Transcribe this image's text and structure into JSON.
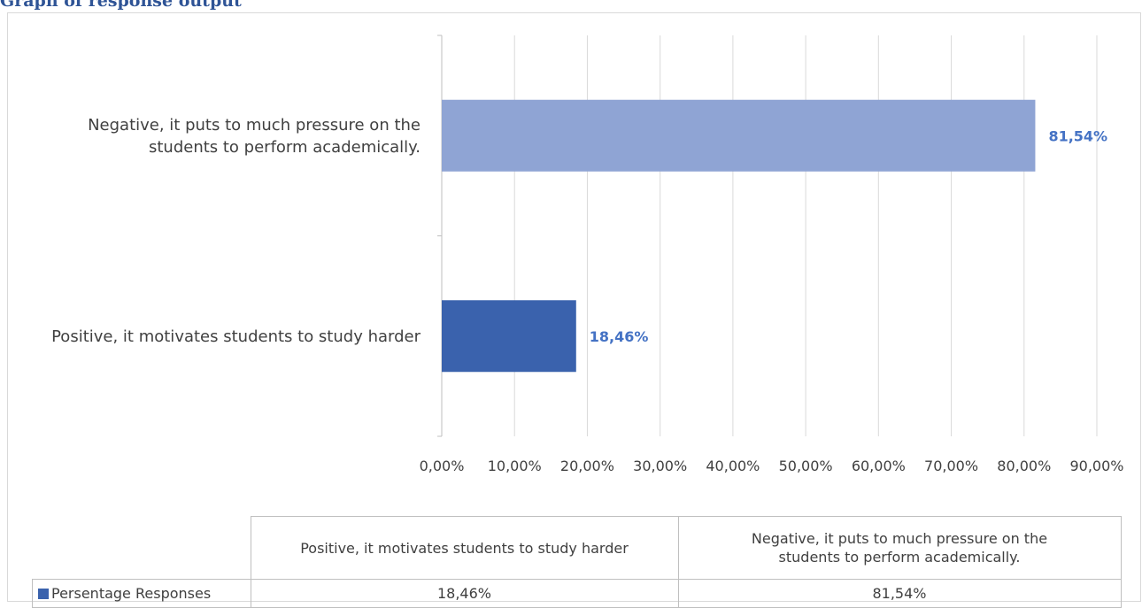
{
  "heading": "Graph of response output",
  "chart_data": {
    "type": "bar",
    "orientation": "horizontal",
    "categories": [
      "Negative, it puts to much pressure on the students to perform academically.",
      "Positive, it motivates students to study harder"
    ],
    "category_lines": [
      [
        "Negative, it puts to much pressure on the",
        "students to perform academically."
      ],
      [
        "Positive, it motivates students to study harder"
      ]
    ],
    "series": [
      {
        "name": "Persentage Responses",
        "values": [
          81.54,
          18.46
        ],
        "labels": [
          "81,54%",
          "18,46%"
        ],
        "colors": [
          "#8fa4d4",
          "#3a62ad"
        ]
      }
    ],
    "xlim": [
      0,
      90
    ],
    "xticks": [
      "0,00%",
      "10,00%",
      "20,00%",
      "30,00%",
      "40,00%",
      "50,00%",
      "60,00%",
      "70,00%",
      "80,00%",
      "90,00%"
    ],
    "grid": true,
    "data_label_color": "#4472c4",
    "data_table": {
      "columns": [
        [
          "Positive, it motivates students to study harder"
        ],
        [
          "Negative, it puts to much pressure on the",
          "students to perform academically."
        ]
      ],
      "row_label": "Persentage Responses",
      "row_values": [
        "18,46%",
        "81,54%"
      ]
    }
  }
}
